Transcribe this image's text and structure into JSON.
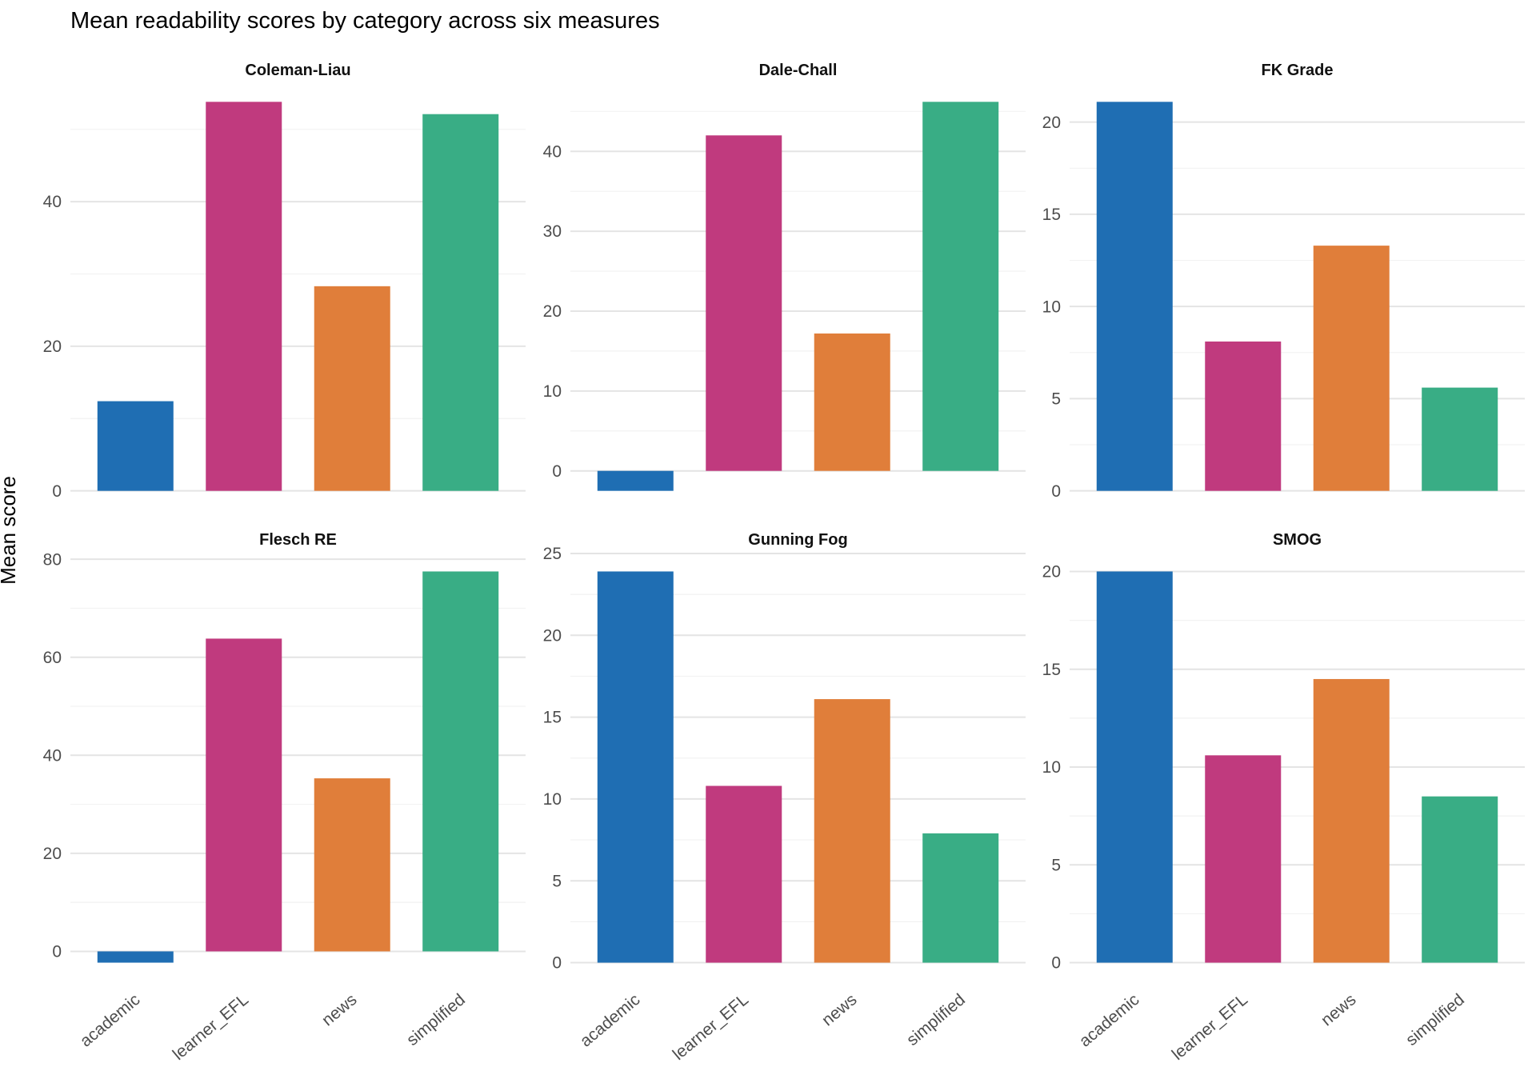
{
  "chart_data": {
    "type": "bar",
    "title": "Mean readability scores by category across six measures",
    "ylabel": "Mean score",
    "xlabel": "",
    "categories": [
      "academic",
      "learner_EFL",
      "news",
      "simplified"
    ],
    "category_colors": {
      "academic": "#1f6eb3",
      "learner_EFL": "#c03a7e",
      "news": "#e07e3a",
      "simplified": "#39ad85"
    },
    "facets": [
      {
        "title": "Coleman-Liau",
        "values": [
          12.4,
          53.8,
          28.3,
          52.1
        ],
        "y_breaks": [
          0,
          20,
          40
        ]
      },
      {
        "title": "Dale-Chall",
        "values": [
          -2.5,
          42.0,
          17.2,
          46.2
        ],
        "y_breaks": [
          0,
          10,
          20,
          30,
          40
        ]
      },
      {
        "title": "FK Grade",
        "values": [
          21.1,
          8.1,
          13.3,
          5.6
        ],
        "y_breaks": [
          0,
          5,
          10,
          15,
          20
        ]
      },
      {
        "title": "Flesch RE",
        "values": [
          -2.3,
          63.8,
          35.3,
          77.5
        ],
        "y_breaks": [
          0,
          20,
          40,
          60,
          80
        ]
      },
      {
        "title": "Gunning Fog",
        "values": [
          23.9,
          10.8,
          16.1,
          7.9
        ],
        "y_breaks": [
          0,
          5,
          10,
          15,
          20,
          25
        ]
      },
      {
        "title": "SMOG",
        "values": [
          20.0,
          10.6,
          14.5,
          8.5
        ],
        "y_breaks": [
          0,
          5,
          10,
          15,
          20
        ]
      }
    ],
    "layout": {
      "grid": "2 rows x 3 cols",
      "scales": "free_y",
      "bar_rel_width": 0.7,
      "y_expansion": 0.05,
      "x_tick_angle_deg": 40,
      "legend": "none",
      "grid_major_color": "#e4e4e4",
      "grid_minor_color": "#f2f2f2",
      "axis_text_color": "#4d4d4d",
      "strip_text_color": "#111111",
      "background_color": "#ffffff"
    }
  }
}
